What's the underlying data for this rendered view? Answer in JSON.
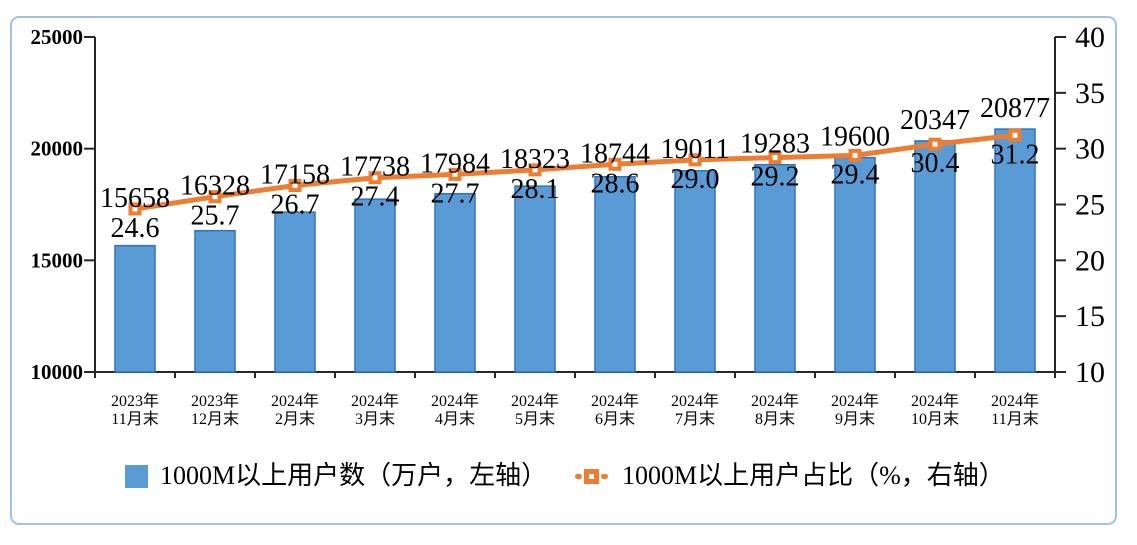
{
  "chart_data": {
    "type": "combo-bar-line",
    "categories": [
      {
        "top": "2023年",
        "bottom": "11月末"
      },
      {
        "top": "2023年",
        "bottom": "12月末"
      },
      {
        "top": "2024年",
        "bottom": "2月末"
      },
      {
        "top": "2024年",
        "bottom": "3月末"
      },
      {
        "top": "2024年",
        "bottom": "4月末"
      },
      {
        "top": "2024年",
        "bottom": "5月末"
      },
      {
        "top": "2024年",
        "bottom": "6月末"
      },
      {
        "top": "2024年",
        "bottom": "7月末"
      },
      {
        "top": "2024年",
        "bottom": "8月末"
      },
      {
        "top": "2024年",
        "bottom": "9月末"
      },
      {
        "top": "2024年",
        "bottom": "10月末"
      },
      {
        "top": "2024年",
        "bottom": "11月末"
      }
    ],
    "series": [
      {
        "name": "1000M以上用户数（万户，左轴）",
        "type": "bar",
        "axis": "left",
        "values": [
          15658,
          16328,
          17158,
          17738,
          17984,
          18323,
          18744,
          19011,
          19283,
          19600,
          20347,
          20877
        ]
      },
      {
        "name": "1000M以上用户占比（%，右轴）",
        "type": "line",
        "axis": "right",
        "values": [
          24.6,
          25.7,
          26.7,
          27.4,
          27.7,
          28.1,
          28.6,
          29.0,
          29.2,
          29.4,
          30.4,
          31.2
        ]
      }
    ],
    "left_axis": {
      "min": 10000,
      "max": 25000,
      "step": 5000,
      "ticks": [
        10000,
        15000,
        20000,
        25000
      ]
    },
    "right_axis": {
      "min": 10,
      "max": 40,
      "step": 5,
      "ticks": [
        10,
        15,
        20,
        25,
        30,
        35,
        40
      ]
    },
    "colors": {
      "bar_fill": "#5B9BD5",
      "bar_border": "#2E75B6",
      "line": "#ED7D31",
      "frame": "#9DC3E6",
      "axis": "#262626",
      "xlabel": "#3F3F3F",
      "data_label": "#000000"
    },
    "legend_position": "bottom",
    "grid": false
  }
}
